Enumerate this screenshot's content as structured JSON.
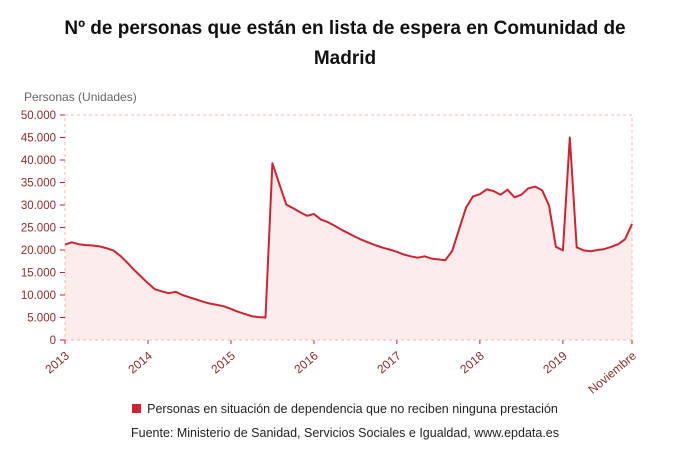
{
  "chart_data": {
    "type": "area",
    "title": "Nº de personas que están en lista de espera en Comunidad de Madrid",
    "ylabel": "Personas (Unidades)",
    "xlabel": "",
    "ylim": [
      0,
      50000
    ],
    "y_tick_step": 5000,
    "y_tick_labels": [
      "0",
      "5.000",
      "10.000",
      "15.000",
      "20.000",
      "25.000",
      "30.000",
      "35.000",
      "40.000",
      "45.000",
      "50.000"
    ],
    "x_tick_labels": [
      "2013",
      "2014",
      "2015",
      "2016",
      "2017",
      "2018",
      "2019",
      "Noviembre"
    ],
    "x_tick_indices": [
      0,
      12,
      24,
      36,
      48,
      60,
      72,
      82
    ],
    "grid": false,
    "legend_position": "bottom",
    "legend": [
      "Personas en situación de dependencia que no reciben ninguna prestación"
    ],
    "source": "Fuente: Ministerio de Sanidad, Servicios Sociales e Igualdad, www.epdata.es",
    "colors": {
      "line": "#cf2233",
      "fill": "#fdecec",
      "border": "#f2b9b9",
      "tick": "#cf2233",
      "axis_text": "#8b2c2c"
    },
    "series": [
      {
        "name": "Personas en situación de dependencia que no reciben ninguna prestación",
        "x_start": "2013-01",
        "x_interval": "month",
        "values": [
          21200,
          21700,
          21300,
          21100,
          21000,
          20800,
          20400,
          19900,
          18700,
          17200,
          15600,
          14100,
          12600,
          11300,
          10800,
          10400,
          10700,
          10000,
          9500,
          9000,
          8500,
          8100,
          7800,
          7500,
          6900,
          6300,
          5800,
          5300,
          5100,
          5000,
          39300,
          34600,
          30100,
          29300,
          28400,
          27600,
          28000,
          26800,
          26200,
          25400,
          24500,
          23700,
          22900,
          22200,
          21600,
          21000,
          20500,
          20100,
          19600,
          19000,
          18600,
          18300,
          18600,
          18100,
          17900,
          17700,
          19800,
          24600,
          29400,
          31900,
          32400,
          33500,
          33100,
          32300,
          33400,
          31700,
          32300,
          33700,
          34100,
          33300,
          29900,
          20700,
          19900,
          45000,
          20600,
          19900,
          19700,
          20000,
          20200,
          20700,
          21300,
          22400,
          25800
        ]
      }
    ]
  }
}
